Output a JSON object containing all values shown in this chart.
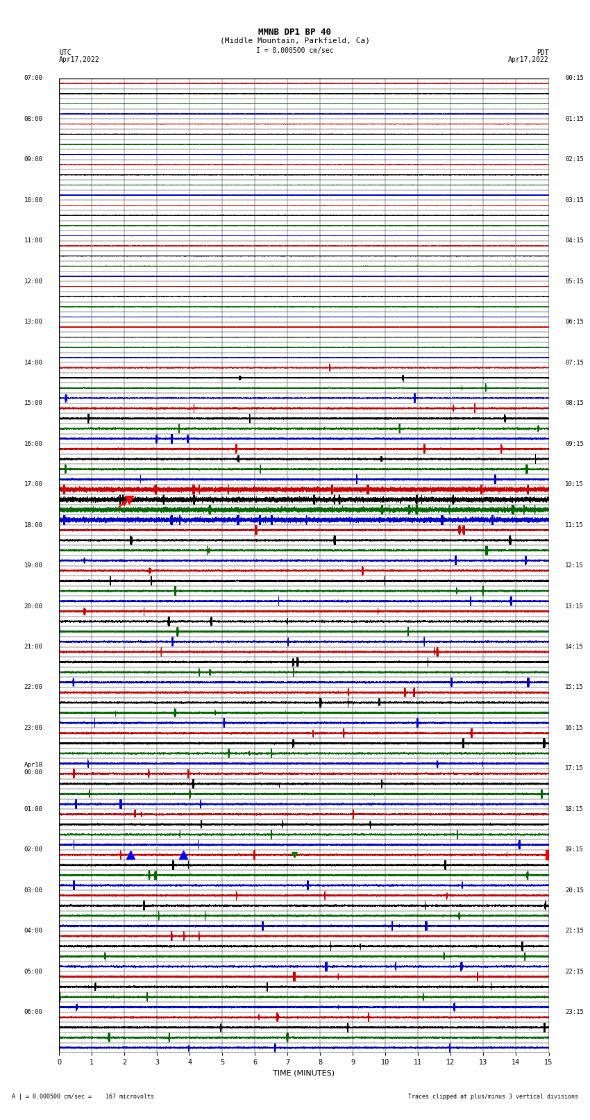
{
  "title_line1": "MMNB DP1 BP 40",
  "title_line2": "(Middle Mountain, Parkfield, Ca)",
  "scale_text": "I = 0.000500 cm/sec",
  "left_label": "UTC",
  "left_date": "Apr17,2022",
  "right_label": "PDT",
  "right_date": "Apr17,2022",
  "bottom_label": "TIME (MINUTES)",
  "footer_left": "A | = 0.000500 cm/sec =    167 microvolts",
  "footer_right": "Traces clipped at plus/minus 3 vertical divisions",
  "utc_times": [
    "07:00",
    "08:00",
    "09:00",
    "10:00",
    "11:00",
    "12:00",
    "13:00",
    "14:00",
    "15:00",
    "16:00",
    "17:00",
    "18:00",
    "19:00",
    "20:00",
    "21:00",
    "22:00",
    "23:00",
    "Apr18\n00:00",
    "01:00",
    "02:00",
    "03:00",
    "04:00",
    "05:00",
    "06:00"
  ],
  "pdt_times": [
    "00:15",
    "01:15",
    "02:15",
    "03:15",
    "04:15",
    "05:15",
    "06:15",
    "07:15",
    "08:15",
    "09:15",
    "10:15",
    "11:15",
    "12:15",
    "13:15",
    "14:15",
    "15:15",
    "16:15",
    "17:15",
    "18:15",
    "19:15",
    "20:15",
    "21:15",
    "22:15",
    "23:15"
  ],
  "trace_colors": [
    "#cc0000",
    "#000000",
    "#006600",
    "#0000cc"
  ],
  "n_rows": 24,
  "n_channels": 4,
  "minutes": 15,
  "sample_rate": 100,
  "background_color": "#ffffff",
  "grid_color": "#000000",
  "special_row_red": 10,
  "special_row_blue": 19,
  "earthquake_row": 10,
  "earthquake_minute": 2.3
}
